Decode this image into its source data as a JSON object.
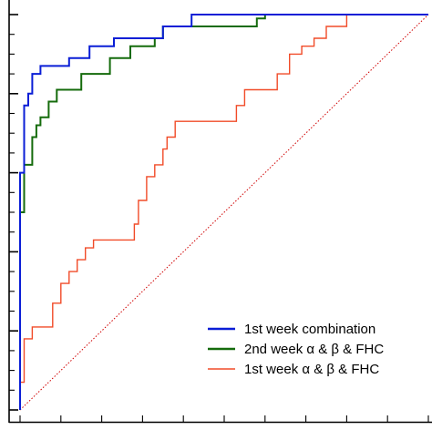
{
  "chart_data": {
    "type": "line",
    "title": "",
    "xlabel": "",
    "ylabel": "",
    "xlim": [
      0,
      1
    ],
    "ylim": [
      0,
      1
    ],
    "grid": false,
    "legend_position": "bottom-right",
    "diagonal_reference": {
      "color": "#d00000",
      "style": "dotted"
    },
    "series": [
      {
        "name": "1st week combination",
        "color": "#0a1ed6",
        "points": [
          [
            0,
            0
          ],
          [
            0,
            0.6
          ],
          [
            0.01,
            0.6
          ],
          [
            0.01,
            0.77
          ],
          [
            0.02,
            0.77
          ],
          [
            0.02,
            0.8
          ],
          [
            0.03,
            0.8
          ],
          [
            0.03,
            0.85
          ],
          [
            0.05,
            0.85
          ],
          [
            0.05,
            0.87
          ],
          [
            0.12,
            0.87
          ],
          [
            0.12,
            0.89
          ],
          [
            0.17,
            0.89
          ],
          [
            0.17,
            0.92
          ],
          [
            0.23,
            0.92
          ],
          [
            0.23,
            0.94
          ],
          [
            0.35,
            0.94
          ],
          [
            0.35,
            0.97
          ],
          [
            0.42,
            0.97
          ],
          [
            0.42,
            1.0
          ],
          [
            1.0,
            1.0
          ]
        ]
      },
      {
        "name": "2nd week α & β & FHC",
        "color": "#156b0c",
        "points": [
          [
            0,
            0
          ],
          [
            0,
            0.5
          ],
          [
            0.01,
            0.5
          ],
          [
            0.01,
            0.62
          ],
          [
            0.03,
            0.62
          ],
          [
            0.03,
            0.69
          ],
          [
            0.04,
            0.69
          ],
          [
            0.04,
            0.72
          ],
          [
            0.05,
            0.72
          ],
          [
            0.05,
            0.74
          ],
          [
            0.07,
            0.74
          ],
          [
            0.07,
            0.78
          ],
          [
            0.09,
            0.78
          ],
          [
            0.09,
            0.81
          ],
          [
            0.15,
            0.81
          ],
          [
            0.15,
            0.85
          ],
          [
            0.22,
            0.85
          ],
          [
            0.22,
            0.89
          ],
          [
            0.27,
            0.89
          ],
          [
            0.27,
            0.92
          ],
          [
            0.33,
            0.92
          ],
          [
            0.33,
            0.94
          ],
          [
            0.35,
            0.94
          ],
          [
            0.35,
            0.97
          ],
          [
            0.58,
            0.97
          ],
          [
            0.58,
            0.99
          ],
          [
            0.6,
            0.99
          ],
          [
            0.6,
            1.0
          ],
          [
            1.0,
            1.0
          ]
        ]
      },
      {
        "name": "1st week α & β & FHC",
        "color": "#f14b28",
        "points": [
          [
            0,
            0
          ],
          [
            0,
            0.07
          ],
          [
            0.01,
            0.07
          ],
          [
            0.01,
            0.18
          ],
          [
            0.03,
            0.18
          ],
          [
            0.03,
            0.21
          ],
          [
            0.08,
            0.21
          ],
          [
            0.08,
            0.27
          ],
          [
            0.1,
            0.27
          ],
          [
            0.1,
            0.32
          ],
          [
            0.12,
            0.32
          ],
          [
            0.12,
            0.35
          ],
          [
            0.14,
            0.35
          ],
          [
            0.14,
            0.38
          ],
          [
            0.16,
            0.38
          ],
          [
            0.16,
            0.41
          ],
          [
            0.18,
            0.41
          ],
          [
            0.18,
            0.43
          ],
          [
            0.28,
            0.43
          ],
          [
            0.28,
            0.47
          ],
          [
            0.29,
            0.47
          ],
          [
            0.29,
            0.53
          ],
          [
            0.31,
            0.53
          ],
          [
            0.31,
            0.59
          ],
          [
            0.33,
            0.59
          ],
          [
            0.33,
            0.62
          ],
          [
            0.35,
            0.62
          ],
          [
            0.35,
            0.66
          ],
          [
            0.36,
            0.66
          ],
          [
            0.36,
            0.69
          ],
          [
            0.38,
            0.69
          ],
          [
            0.38,
            0.73
          ],
          [
            0.53,
            0.73
          ],
          [
            0.53,
            0.77
          ],
          [
            0.55,
            0.77
          ],
          [
            0.55,
            0.81
          ],
          [
            0.63,
            0.81
          ],
          [
            0.63,
            0.85
          ],
          [
            0.66,
            0.85
          ],
          [
            0.66,
            0.9
          ],
          [
            0.69,
            0.9
          ],
          [
            0.69,
            0.92
          ],
          [
            0.72,
            0.92
          ],
          [
            0.72,
            0.94
          ],
          [
            0.75,
            0.94
          ],
          [
            0.75,
            0.97
          ],
          [
            0.8,
            0.97
          ],
          [
            0.8,
            1.0
          ],
          [
            1.0,
            1.0
          ]
        ]
      }
    ],
    "y_ticks": [
      0,
      0.05,
      0.1,
      0.15,
      0.2,
      0.25,
      0.3,
      0.35,
      0.4,
      0.45,
      0.5,
      0.55,
      0.6,
      0.65,
      0.7,
      0.75,
      0.8,
      0.85,
      0.9,
      0.95,
      1.0
    ],
    "y_major_ticks": [
      0,
      0.2,
      0.4,
      0.6,
      0.8,
      1.0
    ],
    "x_ticks": [
      0,
      0.1,
      0.2,
      0.3,
      0.4,
      0.5,
      0.6,
      0.7,
      0.8,
      0.9,
      1.0
    ]
  }
}
